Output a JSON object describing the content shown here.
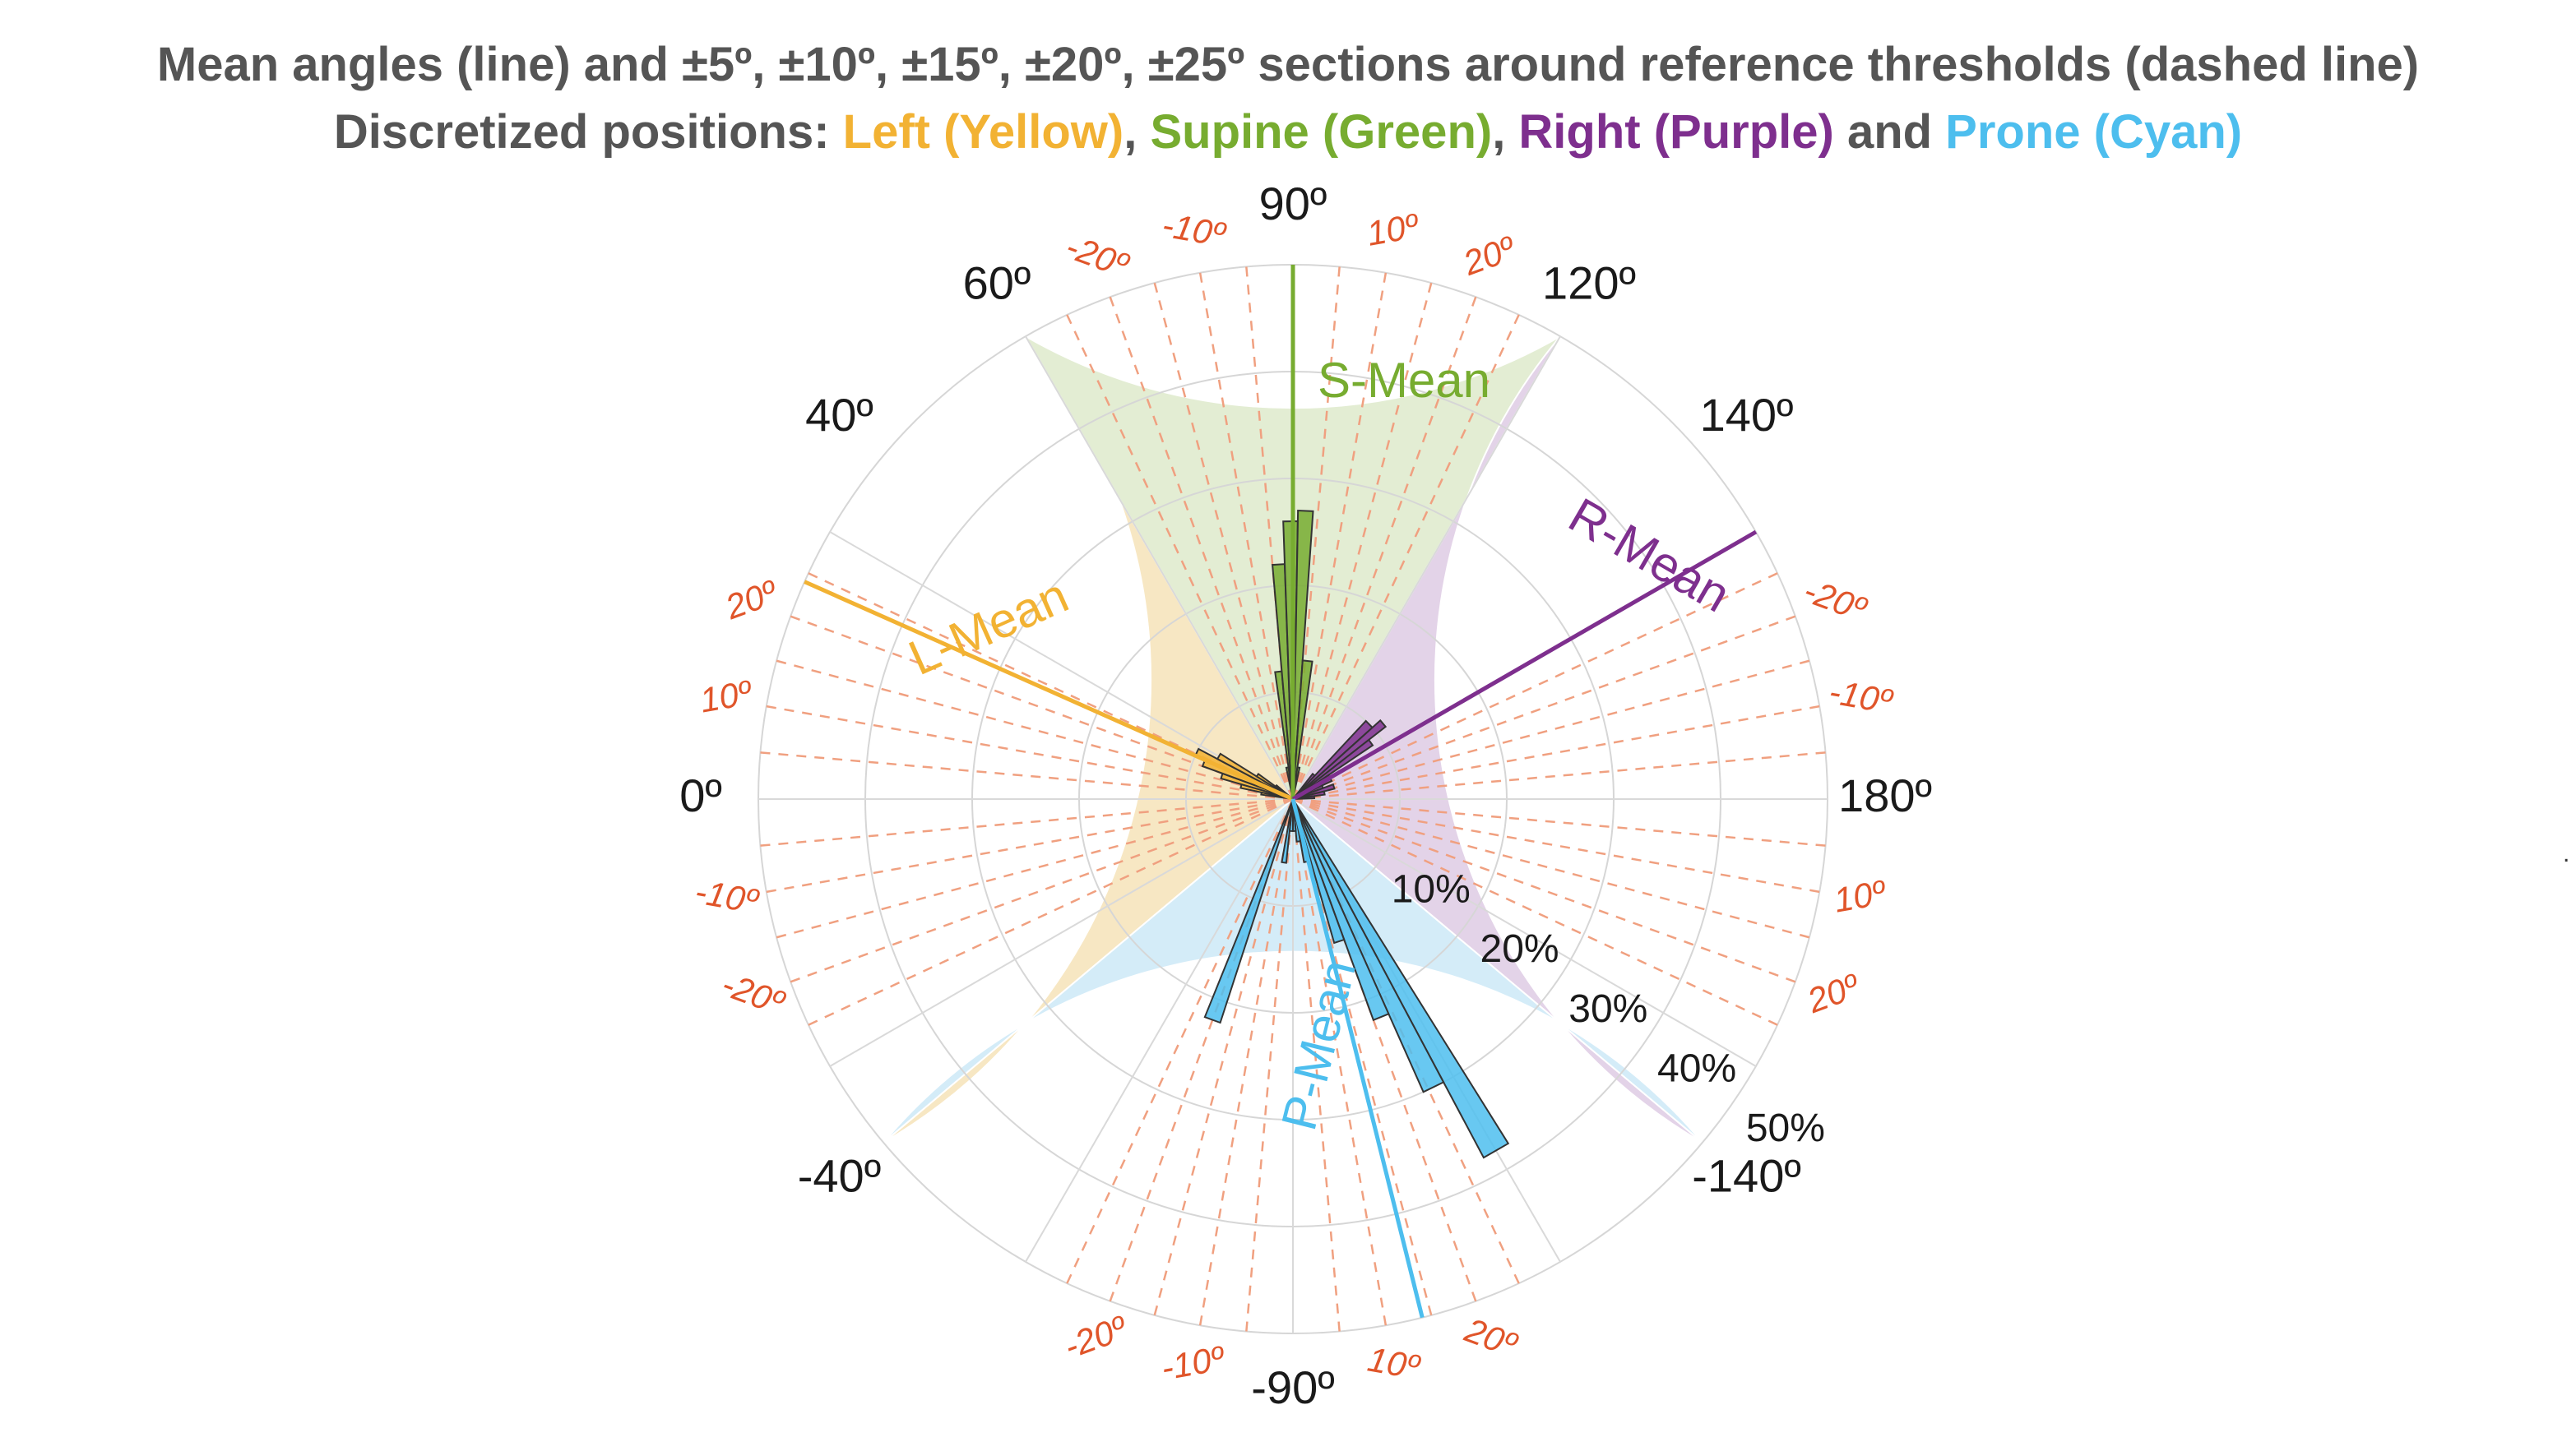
{
  "title": {
    "line1": "Mean angles (line) and ±5º, ±10º, ±15º, ±20º, ±25º sections around reference thresholds (dashed line)",
    "line2_prefix": "Discretized positions: ",
    "left_label": "Left (Yellow)",
    "sep1": ", ",
    "supine_label": "Supine (Green)",
    "sep2": ", ",
    "right_label": "Right (Purple)",
    "and_text": " and ",
    "prone_label": "Prone (Cyan)"
  },
  "colors": {
    "title_gray": "#555555",
    "left": "#f2b233",
    "left_fill": "#f7e7c3",
    "supine": "#77ac30",
    "supine_fill": "#e3edd3",
    "right": "#7e2f8e",
    "right_fill": "#e3d3e8",
    "prone": "#4dbeee",
    "prone_fill": "#d4ecf8",
    "dashed": "#f0a080",
    "offset_text": "#e0552a"
  },
  "chart_data": {
    "type": "polar-histogram",
    "title": "Mean angles (line) and ±5º, ±10º, ±15º, ±20º, ±25º sections around reference thresholds (dashed line)",
    "subtitle": "Discretized positions: Left (Yellow), Supine (Green), Right (Purple) and Prone (Cyan)",
    "rlim": [
      0,
      50
    ],
    "r_ticks": [
      10,
      20,
      30,
      40,
      50
    ],
    "r_tick_labels": [
      "10%",
      "20%",
      "30%",
      "40%",
      "50%"
    ],
    "theta_labels": [
      {
        "deg": 0,
        "text": "0º"
      },
      {
        "deg": 40,
        "text": "40º"
      },
      {
        "deg": 60,
        "text": "60º"
      },
      {
        "deg": 90,
        "text": "90º"
      },
      {
        "deg": 120,
        "text": "120º"
      },
      {
        "deg": 140,
        "text": "140º"
      },
      {
        "deg": 180,
        "text": "180º"
      },
      {
        "deg": -40,
        "text": "-40º"
      },
      {
        "deg": -90,
        "text": "-90º"
      },
      {
        "deg": -140,
        "text": "-140º"
      }
    ],
    "sectors": [
      {
        "position": "Left",
        "from": -40,
        "to": 60
      },
      {
        "position": "Supine",
        "from": 60,
        "to": 120
      },
      {
        "position": "Right",
        "from": 120,
        "to": 220
      },
      {
        "position": "Prone",
        "from": 220,
        "to": 320
      }
    ],
    "reference_thresholds": [
      {
        "center": 0,
        "offsets": [
          -25,
          -20,
          -15,
          -10,
          -5,
          5,
          10,
          15,
          20,
          25
        ]
      },
      {
        "center": 90,
        "offsets": [
          -25,
          -20,
          -15,
          -10,
          -5,
          5,
          10,
          15,
          20,
          25
        ]
      },
      {
        "center": 180,
        "offsets": [
          -25,
          -20,
          -15,
          -10,
          -5,
          5,
          10,
          15,
          20,
          25
        ]
      },
      {
        "center": -90,
        "offsets": [
          -25,
          -20,
          -15,
          -10,
          -5,
          5,
          10,
          15,
          20,
          25
        ]
      }
    ],
    "offset_labels": [
      {
        "deg": 100,
        "text": "10º"
      },
      {
        "deg": 110,
        "text": "20º"
      },
      {
        "deg": 80,
        "text": "-10º"
      },
      {
        "deg": 70,
        "text": "-20º"
      },
      {
        "deg": 10,
        "text": "10º"
      },
      {
        "deg": 20,
        "text": "20º"
      },
      {
        "deg": -10,
        "text": "-10º"
      },
      {
        "deg": -20,
        "text": "-20º"
      },
      {
        "deg": 170,
        "text": "-10º"
      },
      {
        "deg": 160,
        "text": "-20º"
      },
      {
        "deg": 190,
        "text": "10º"
      },
      {
        "deg": 200,
        "text": "20º"
      },
      {
        "deg": -100,
        "text": "10º"
      },
      {
        "deg": -110,
        "text": "20º"
      },
      {
        "deg": -80,
        "text": "-10º"
      },
      {
        "deg": -70,
        "text": "-20º"
      }
    ],
    "means": [
      {
        "name": "L-Mean",
        "angle": 24,
        "color": "#f2b233"
      },
      {
        "name": "S-Mean",
        "angle": 90,
        "color": "#77ac30"
      },
      {
        "name": "R-Mean",
        "angle": 150,
        "color": "#7e2f8e"
      },
      {
        "name": "P-Mean",
        "angle": -104,
        "color": "#4dbeee"
      }
    ],
    "series": [
      {
        "name": "Left",
        "color": "#f2b233",
        "bins": [
          {
            "from": 8,
            "to": 12,
            "value": 3
          },
          {
            "from": 12,
            "to": 16,
            "value": 5
          },
          {
            "from": 16,
            "to": 20,
            "value": 7
          },
          {
            "from": 20,
            "to": 24,
            "value": 9
          },
          {
            "from": 24,
            "to": 28,
            "value": 10
          },
          {
            "from": 28,
            "to": 32,
            "value": 8
          },
          {
            "from": 32,
            "to": 36,
            "value": 4
          },
          {
            "from": 36,
            "to": 40,
            "value": 2
          }
        ]
      },
      {
        "name": "Supine",
        "color": "#77ac30",
        "bins": [
          {
            "from": 78,
            "to": 82,
            "value": 3
          },
          {
            "from": 82,
            "to": 85,
            "value": 12
          },
          {
            "from": 85,
            "to": 88,
            "value": 22
          },
          {
            "from": 88,
            "to": 91,
            "value": 26
          },
          {
            "from": 91,
            "to": 94,
            "value": 27
          },
          {
            "from": 94,
            "to": 98,
            "value": 13
          },
          {
            "from": 98,
            "to": 102,
            "value": 3
          }
        ]
      },
      {
        "name": "Right",
        "color": "#7e2f8e",
        "bins": [
          {
            "from": 128,
            "to": 133,
            "value": 3
          },
          {
            "from": 133,
            "to": 138,
            "value": 10
          },
          {
            "from": 138,
            "to": 142,
            "value": 11
          },
          {
            "from": 142,
            "to": 146,
            "value": 9
          },
          {
            "from": 146,
            "to": 150,
            "value": 4
          },
          {
            "from": 150,
            "to": 155,
            "value": 4
          },
          {
            "from": 155,
            "to": 160,
            "value": 3
          },
          {
            "from": 160,
            "to": 166,
            "value": 4
          },
          {
            "from": 166,
            "to": 172,
            "value": 3
          },
          {
            "from": 172,
            "to": 178,
            "value": 2
          }
        ]
      },
      {
        "name": "Prone",
        "color": "#4dbeee",
        "bins": [
          {
            "from": -122,
            "to": -118,
            "value": 38
          },
          {
            "from": -118,
            "to": -114,
            "value": 30
          },
          {
            "from": -114,
            "to": -110,
            "value": 22
          },
          {
            "from": -110,
            "to": -106,
            "value": 14
          },
          {
            "from": -106,
            "to": -100,
            "value": 6
          },
          {
            "from": -100,
            "to": -95,
            "value": 4
          },
          {
            "from": -95,
            "to": -90,
            "value": 3
          },
          {
            "from": -90,
            "to": -84,
            "value": 3
          },
          {
            "from": -84,
            "to": -80,
            "value": 6
          },
          {
            "from": -72,
            "to": -68,
            "value": 22
          }
        ]
      }
    ]
  }
}
